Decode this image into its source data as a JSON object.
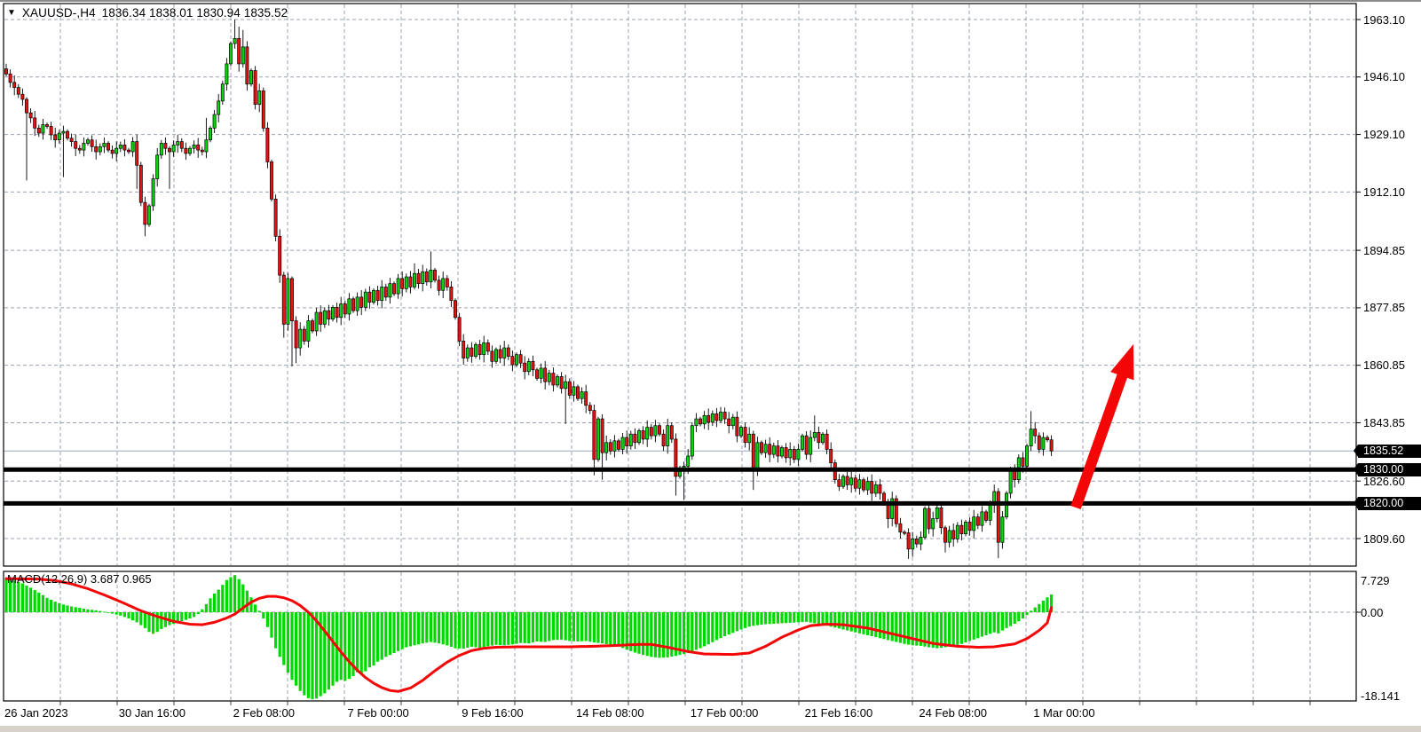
{
  "window": {
    "dropdown_icon": "▼",
    "title_symbol": "XAUUSD-,H4",
    "title_ohlc": "1836.34 1838.01 1830.94 1835.52"
  },
  "macd_panel": {
    "label": "MACD(12,26,9) 3.687 0.965",
    "max_label": "7.729",
    "zero_label": "0.00",
    "min_label": "-18.141"
  },
  "price_axis": {
    "labels": [
      "1963.10",
      "1946.10",
      "1929.10",
      "1912.10",
      "1894.85",
      "1877.85",
      "1860.85",
      "1843.85",
      "1826.60",
      "1809.60"
    ],
    "badges": [
      "1835.52",
      "1830.00",
      "1820.00"
    ]
  },
  "time_axis": {
    "labels": [
      "26 Jan 2023",
      "30 Jan 16:00",
      "2 Feb 08:00",
      "7 Feb 00:00",
      "9 Feb 16:00",
      "14 Feb 08:00",
      "17 Feb 00:00",
      "21 Feb 16:00",
      "24 Feb 08:00",
      "1 Mar 00:00"
    ]
  },
  "colors": {
    "bull": "#00d900",
    "bear": "#ee0f0f",
    "wick": "#000000",
    "grid": "#9aa4b2",
    "signal_line": "#f40606",
    "hline": "#000000",
    "badge_bg": "#000000",
    "badge_fg": "#ffffff",
    "current_price_line": "#9aa8b8",
    "arrow": "#f40606"
  },
  "chart_data": {
    "type": "candlestick+macd",
    "symbol": "XAUUSD-",
    "timeframe": "H4",
    "current_bar_ohlc": {
      "open": 1836.34,
      "high": 1838.01,
      "low": 1830.94,
      "close": 1835.52
    },
    "price_gridlines": [
      1963.1,
      1946.1,
      1929.1,
      1912.1,
      1894.85,
      1877.85,
      1860.85,
      1843.85,
      1826.6,
      1809.6
    ],
    "horizontal_lines": [
      1830.0,
      1820.0
    ],
    "current_price": 1835.52,
    "macd_settings": {
      "fast": 12,
      "slow": 26,
      "signal": 9,
      "current_macd": 3.687,
      "current_signal": 0.965,
      "max": 7.729,
      "min": -18.141
    },
    "bars": 257,
    "open_first": 1948.5,
    "closes": [
      1947,
      1944.5,
      1943,
      1941,
      1939.5,
      1935.5,
      1934,
      1931,
      1929.5,
      1932,
      1931.5,
      1929,
      1927.5,
      1929.5,
      1930,
      1928,
      1927,
      1925,
      1924.5,
      1926.5,
      1927.5,
      1925.5,
      1924,
      1925.5,
      1926.5,
      1924.5,
      1923.5,
      1925,
      1926,
      1924.5,
      1924,
      1927,
      1920,
      1909,
      1902.5,
      1908,
      1916,
      1923,
      1926.5,
      1925,
      1924,
      1926,
      1927,
      1925,
      1923.5,
      1925,
      1926,
      1924.5,
      1924,
      1927.5,
      1931,
      1935,
      1939,
      1944,
      1950,
      1956,
      1957.5,
      1950,
      1955,
      1944,
      1948,
      1938,
      1942,
      1931,
      1921,
      1910,
      1899,
      1887.5,
      1873,
      1886.5,
      1874,
      1866,
      1871.5,
      1868,
      1874,
      1871,
      1876.5,
      1873,
      1877,
      1874.5,
      1878,
      1875,
      1879,
      1876,
      1880.5,
      1877,
      1881,
      1878,
      1882.5,
      1879.5,
      1883,
      1880,
      1884,
      1881,
      1885,
      1882,
      1886.5,
      1883.5,
      1887,
      1884,
      1888,
      1885,
      1888.5,
      1885.5,
      1889,
      1886,
      1883,
      1886.5,
      1884,
      1880,
      1875,
      1868,
      1863,
      1866,
      1863.5,
      1867,
      1864,
      1867.5,
      1865,
      1862,
      1865.5,
      1863,
      1866,
      1863.5,
      1861,
      1864,
      1861.5,
      1859,
      1862,
      1859.5,
      1857,
      1860,
      1856,
      1858.5,
      1855,
      1857.5,
      1854,
      1856,
      1852,
      1854.5,
      1851,
      1853,
      1849,
      1847.5,
      1833,
      1845,
      1835,
      1838,
      1835.5,
      1838.5,
      1836,
      1839.5,
      1837,
      1840.5,
      1838,
      1841.5,
      1839,
      1842.5,
      1840,
      1843,
      1840.5,
      1837,
      1843,
      1839,
      1828,
      1830.5,
      1831,
      1834,
      1843,
      1845,
      1843.5,
      1846,
      1844,
      1846.5,
      1844.5,
      1847,
      1845,
      1843,
      1845.5,
      1840,
      1842.5,
      1838,
      1840.5,
      1830,
      1838,
      1835,
      1837.5,
      1834.5,
      1837,
      1834,
      1836.5,
      1833.5,
      1836,
      1833,
      1836,
      1840,
      1834.5,
      1839.5,
      1841,
      1838,
      1840.5,
      1836,
      1832,
      1827,
      1825,
      1828,
      1825.5,
      1827.5,
      1824.5,
      1827,
      1824,
      1826.5,
      1823,
      1825.5,
      1823,
      1820,
      1815.5,
      1821.4,
      1814,
      1811.5,
      1811.3,
      1806.5,
      1809.5,
      1808,
      1810,
      1818.5,
      1812.5,
      1815.5,
      1818.7,
      1812.8,
      1808.5,
      1812,
      1809.5,
      1813.5,
      1811,
      1814.5,
      1812,
      1816,
      1813.5,
      1817.5,
      1815,
      1819.5,
      1823.5,
      1808.5,
      1816,
      1823,
      1829.5,
      1827,
      1833.5,
      1831,
      1837,
      1842,
      1840,
      1836,
      1839.5,
      1838.8,
      1835.52
    ],
    "wick_overrides": [
      [
        0,
        "h",
        1950
      ],
      [
        5,
        "l",
        1915.5
      ],
      [
        14,
        "l",
        1916.5
      ],
      [
        32,
        "l",
        1913
      ],
      [
        34,
        "l",
        1899
      ],
      [
        40,
        "l",
        1913
      ],
      [
        49,
        "h",
        1934
      ],
      [
        56,
        "h",
        1963.1
      ],
      [
        57,
        "h",
        1961
      ],
      [
        58,
        "h",
        1960
      ],
      [
        68,
        "l",
        1869
      ],
      [
        70,
        "l",
        1860.5
      ],
      [
        71,
        "l",
        1861.5
      ],
      [
        100,
        "h",
        1891
      ],
      [
        104,
        "h",
        1894.5
      ],
      [
        112,
        "l",
        1861
      ],
      [
        137,
        "l",
        1843.5
      ],
      [
        144,
        "l",
        1828.3
      ],
      [
        146,
        "l",
        1827
      ],
      [
        164,
        "l",
        1822.3
      ],
      [
        166,
        "l",
        1821
      ],
      [
        175,
        "h",
        1848.5
      ],
      [
        183,
        "l",
        1824
      ],
      [
        198,
        "h",
        1846
      ],
      [
        204,
        "l",
        1823.7
      ],
      [
        216,
        "l",
        1812.7
      ],
      [
        221,
        "l",
        1803.6
      ],
      [
        230,
        "l",
        1805.5
      ],
      [
        243,
        "l",
        1803.8
      ],
      [
        251,
        "h",
        1847.3
      ],
      [
        254,
        "h",
        1841
      ]
    ],
    "macd_hist": [
      7.0,
      6.8,
      6.6,
      6.3,
      6.0,
      5.55,
      5.1,
      4.6,
      4.1,
      3.55,
      3.0,
      2.6,
      2.2,
      1.9,
      1.6,
      1.4,
      1.2,
      1.05,
      0.9,
      0.75,
      0.6,
      0.5,
      0.4,
      0.25,
      0.1,
      -0.1,
      -0.3,
      -0.5,
      -0.7,
      -1.0,
      -1.3,
      -1.7,
      -2.1,
      -2.7,
      -3.3,
      -4.1,
      -4.5,
      -4.1,
      -3.5,
      -3.1,
      -2.7,
      -2.4,
      -2.1,
      -1.85,
      -1.6,
      -1.3,
      -1.0,
      -0.4,
      0.6,
      1.7,
      2.9,
      3.9,
      4.7,
      5.7,
      6.7,
      7.3,
      7.729,
      6.9,
      5.8,
      4.5,
      3.1,
      1.6,
      0.3,
      -1.3,
      -3.1,
      -5.3,
      -7.5,
      -9.3,
      -11.0,
      -12.6,
      -14.1,
      -15.3,
      -16.4,
      -17.3,
      -17.9,
      -18.141,
      -18.0,
      -17.5,
      -16.9,
      -16.1,
      -15.3,
      -14.5,
      -14.1,
      -14.3,
      -13.9,
      -13.3,
      -12.5,
      -12.9,
      -12.3,
      -11.5,
      -11.1,
      -10.3,
      -9.9,
      -9.3,
      -8.9,
      -8.5,
      -8.1,
      -7.7,
      -7.3,
      -7.1,
      -6.9,
      -6.7,
      -6.5,
      -6.35,
      -6.2,
      -6.35,
      -6.5,
      -6.7,
      -6.9,
      -7.2,
      -7.5,
      -7.55,
      -7.6,
      -7.4,
      -7.2,
      -7.3,
      -7.4,
      -7.25,
      -7.1,
      -6.95,
      -6.8,
      -6.85,
      -6.9,
      -6.8,
      -6.7,
      -6.55,
      -6.4,
      -6.45,
      -6.5,
      -6.3,
      -6.1,
      -6.15,
      -6.2,
      -6.0,
      -5.8,
      -5.75,
      -5.7,
      -5.85,
      -6.0,
      -6.05,
      -6.1,
      -6.05,
      -6.0,
      -6.15,
      -6.3,
      -6.4,
      -6.5,
      -6.65,
      -6.8,
      -6.95,
      -7.1,
      -7.45,
      -7.8,
      -8.1,
      -8.4,
      -8.65,
      -8.9,
      -9.1,
      -9.3,
      -9.4,
      -9.5,
      -9.45,
      -9.4,
      -9.25,
      -9.1,
      -8.9,
      -8.7,
      -8.45,
      -8.2,
      -7.85,
      -7.5,
      -7.1,
      -6.7,
      -6.25,
      -5.8,
      -5.4,
      -5.0,
      -4.65,
      -4.3,
      -3.95,
      -3.6,
      -3.3,
      -3.0,
      -2.85,
      -2.7,
      -2.6,
      -2.5,
      -2.45,
      -2.4,
      -2.35,
      -2.3,
      -2.25,
      -2.2,
      -2.15,
      -2.1,
      -2.05,
      -2.0,
      -2.15,
      -2.3,
      -2.45,
      -2.6,
      -2.8,
      -3.0,
      -3.2,
      -3.4,
      -3.6,
      -3.8,
      -4.0,
      -4.2,
      -4.4,
      -4.6,
      -4.8,
      -5.0,
      -5.2,
      -5.4,
      -5.6,
      -5.8,
      -6.0,
      -6.2,
      -6.4,
      -6.6,
      -6.75,
      -6.9,
      -6.95,
      -7.0,
      -7.15,
      -7.3,
      -7.4,
      -7.5,
      -7.4,
      -7.3,
      -7.15,
      -7.0,
      -6.8,
      -6.6,
      -6.3,
      -6.0,
      -5.7,
      -5.4,
      -5.1,
      -4.8,
      -4.5,
      -4.2,
      -4.4,
      -3.8,
      -3.3,
      -2.9,
      -2.4,
      -1.9,
      -1.3,
      -0.6,
      0.3,
      1.0,
      1.7,
      2.4,
      3.1,
      3.687
    ],
    "signal_keypoints": [
      [
        0,
        7.0
      ],
      [
        8,
        6.9
      ],
      [
        12,
        6.6
      ],
      [
        16,
        5.9
      ],
      [
        20,
        4.9
      ],
      [
        24,
        3.6
      ],
      [
        28,
        2.2
      ],
      [
        33,
        0.3
      ],
      [
        37,
        -0.9
      ],
      [
        41,
        -1.9
      ],
      [
        45,
        -2.5
      ],
      [
        48,
        -2.6
      ],
      [
        51,
        -2.1
      ],
      [
        54,
        -1.2
      ],
      [
        56,
        -0.4
      ],
      [
        58,
        0.9
      ],
      [
        60,
        2.1
      ],
      [
        62,
        2.9
      ],
      [
        64,
        3.3
      ],
      [
        66,
        3.3
      ],
      [
        68,
        3.0
      ],
      [
        70,
        2.4
      ],
      [
        72,
        1.4
      ],
      [
        74,
        0.0
      ],
      [
        76,
        -1.8
      ],
      [
        78,
        -3.9
      ],
      [
        80,
        -6.1
      ],
      [
        82,
        -8.3
      ],
      [
        84,
        -10.3
      ],
      [
        86,
        -12.1
      ],
      [
        88,
        -13.6
      ],
      [
        90,
        -14.8
      ],
      [
        92,
        -15.7
      ],
      [
        94,
        -16.3
      ],
      [
        96,
        -16.5
      ],
      [
        99,
        -15.8
      ],
      [
        102,
        -14.2
      ],
      [
        105,
        -12.2
      ],
      [
        108,
        -10.4
      ],
      [
        111,
        -9.0
      ],
      [
        114,
        -8.0
      ],
      [
        117,
        -7.5
      ],
      [
        120,
        -7.3
      ],
      [
        126,
        -7.2
      ],
      [
        132,
        -7.2
      ],
      [
        138,
        -7.2
      ],
      [
        144,
        -7.1
      ],
      [
        150,
        -6.9
      ],
      [
        155,
        -6.7
      ],
      [
        158,
        -6.7
      ],
      [
        162,
        -7.3
      ],
      [
        167,
        -8.2
      ],
      [
        171,
        -8.7
      ],
      [
        178,
        -8.8
      ],
      [
        182,
        -8.5
      ],
      [
        186,
        -7.1
      ],
      [
        190,
        -5.2
      ],
      [
        194,
        -3.7
      ],
      [
        197,
        -2.8
      ],
      [
        201,
        -2.5
      ],
      [
        205,
        -2.6
      ],
      [
        211,
        -3.3
      ],
      [
        216,
        -4.3
      ],
      [
        222,
        -5.5
      ],
      [
        227,
        -6.5
      ],
      [
        233,
        -7.1
      ],
      [
        238,
        -7.3
      ],
      [
        242,
        -7.2
      ],
      [
        247,
        -6.6
      ],
      [
        250,
        -5.5
      ],
      [
        253,
        -3.8
      ],
      [
        255,
        -2.2
      ],
      [
        256,
        0.965
      ]
    ]
  }
}
